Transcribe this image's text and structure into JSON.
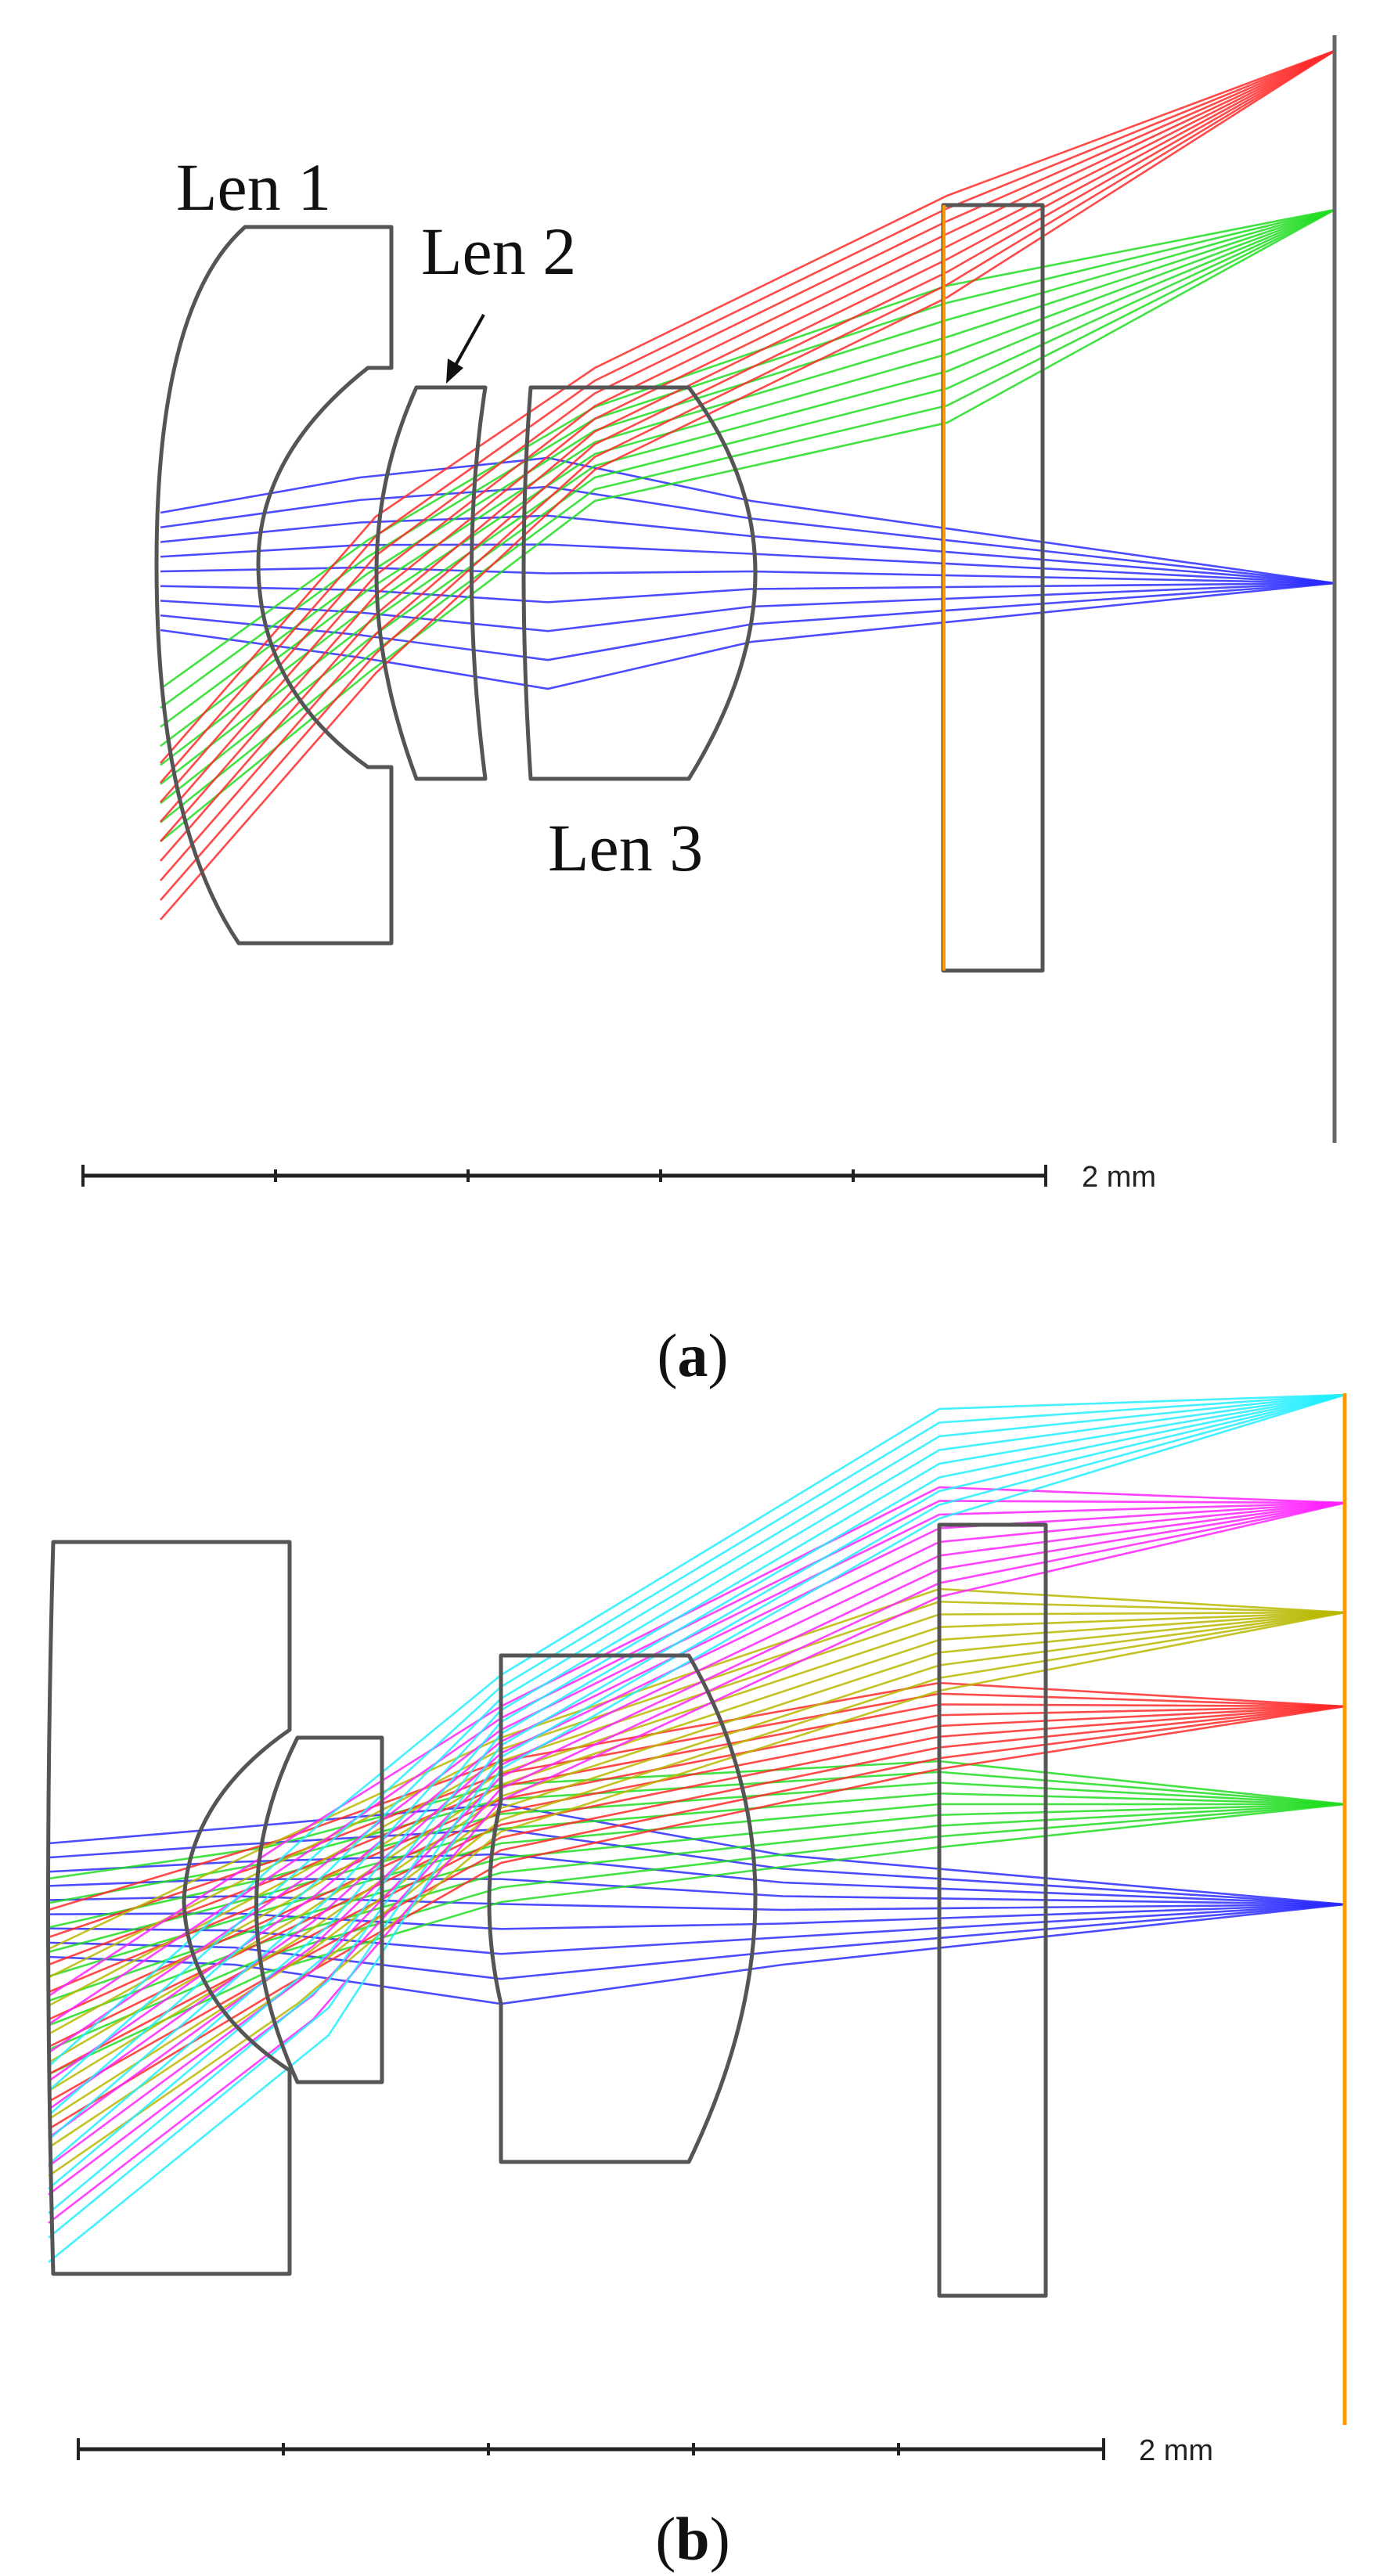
{
  "colors": {
    "lens_outline": "#555555",
    "ray_blue": "#2b2bff",
    "ray_green": "#22dd22",
    "ray_red": "#ff2a2a",
    "ray_magenta": "#ff22ff",
    "ray_cyan": "#22eeff",
    "ray_olive": "#b8b800",
    "image_plane_a": "#666666",
    "image_plane_b": "#ff9900",
    "filter_line_a": "#ff9900"
  },
  "panel_a": {
    "labels": {
      "len1": "Len 1",
      "len2": "Len 2",
      "len3": "Len 3"
    },
    "scale_bar": {
      "text": "2 mm",
      "ticks": 6
    },
    "caption": {
      "open": "(",
      "letter": "a",
      "close": ")"
    },
    "ray_fields": [
      "blue",
      "green",
      "red"
    ]
  },
  "panel_b": {
    "scale_bar": {
      "text": "2 mm",
      "ticks": 6
    },
    "caption": {
      "open": "(",
      "letter": "b",
      "close": ")"
    },
    "ray_fields": [
      "blue",
      "green",
      "red",
      "olive",
      "magenta",
      "cyan"
    ]
  }
}
